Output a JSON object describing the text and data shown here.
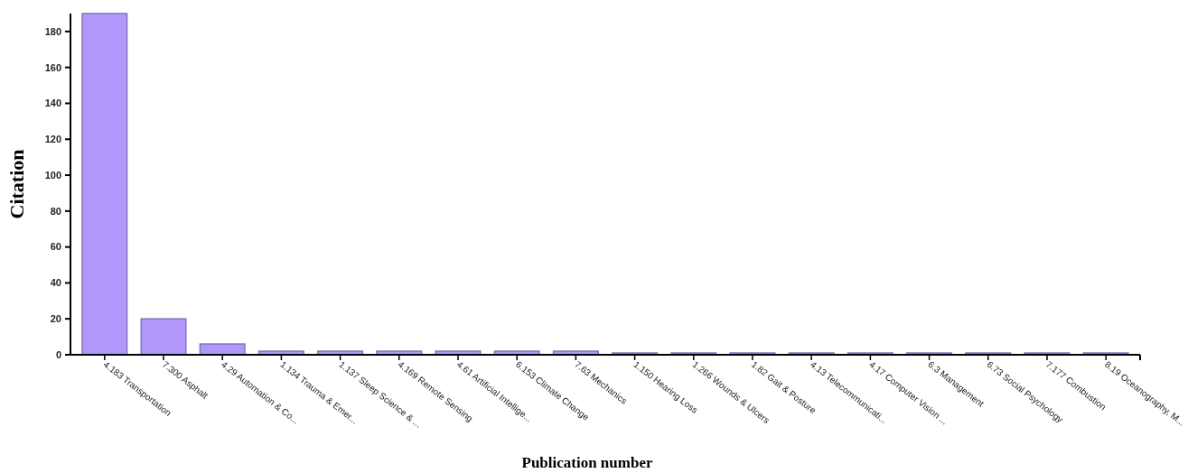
{
  "chart_data": {
    "type": "bar",
    "xlabel": "Publication number",
    "ylabel": "Citation",
    "categories": [
      "4.183 Transportation",
      "7.300 Asphalt",
      "4.29 Automation & Co...",
      "1.134 Trauma & Emer...",
      "1.137 Sleep Science & ...",
      "4.169 Remote Sensing",
      "4.61 Artificial Intellige...",
      "6.153 Climate Change",
      "7.63 Mechanics",
      "1.150 Hearing Loss",
      "1.266 Wounds & Ulcers",
      "1.82 Gait & Posture",
      "4.13 Telecommunicati...",
      "4.17 Computer Vision ...",
      "6.3 Management",
      "6.73 Social Psychology",
      "7.177 Combustion",
      "8.19 Oceanography, M..."
    ],
    "values": [
      190,
      20,
      6,
      2,
      2,
      2,
      2,
      2,
      2,
      1,
      1,
      1,
      1,
      1,
      1,
      1,
      1,
      1
    ],
    "color": "#b197fc",
    "ylim": [
      0,
      190
    ],
    "yticks": [
      0,
      20,
      40,
      60,
      80,
      100,
      120,
      140,
      160,
      180
    ],
    "grid": false
  }
}
